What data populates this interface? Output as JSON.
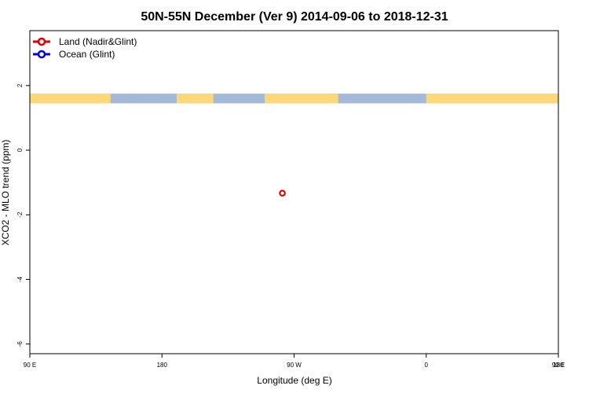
{
  "chart_data": {
    "type": "scatter",
    "title": "50N-55N December (Ver 9)   2014-09-06 to 2018-12-31",
    "xlabel": "Longitude (deg E)",
    "ylabel": "XCO2 - MLO trend (ppm)",
    "xlim": [
      90,
      450
    ],
    "ylim": [
      -6.3,
      3.7
    ],
    "x_ticks": [
      {
        "value": 90,
        "label": "90 E"
      },
      {
        "value": 180,
        "label": "180"
      },
      {
        "value": 270,
        "label": "90 W"
      },
      {
        "value": 360,
        "label": "0"
      },
      {
        "value": 450,
        "label": "90 E"
      },
      {
        "value": 540,
        "label": "180"
      }
    ],
    "y_ticks": [
      {
        "value": 2,
        "label": "2"
      },
      {
        "value": 0,
        "label": "0"
      },
      {
        "value": -2,
        "label": "-2"
      },
      {
        "value": -4,
        "label": "-4"
      },
      {
        "value": -6,
        "label": "-6"
      }
    ],
    "legend_position": "top-left",
    "series": [
      {
        "name": "Land (Nadir&Glint)",
        "color": "#e00000",
        "points": [
          {
            "x": 262,
            "y": -1.33
          }
        ]
      },
      {
        "name": "Ocean (Glint)",
        "color": "#0000e0",
        "points": []
      }
    ],
    "land_ocean_strip": {
      "y_range": [
        1.45,
        1.75
      ],
      "ocean_color": "#a4b8d8",
      "land_color": "#fcd878",
      "land_segments": [
        [
          90,
          145
        ],
        [
          190,
          215
        ],
        [
          250,
          300
        ],
        [
          360,
          460
        ],
        [
          525,
          540
        ]
      ]
    }
  }
}
